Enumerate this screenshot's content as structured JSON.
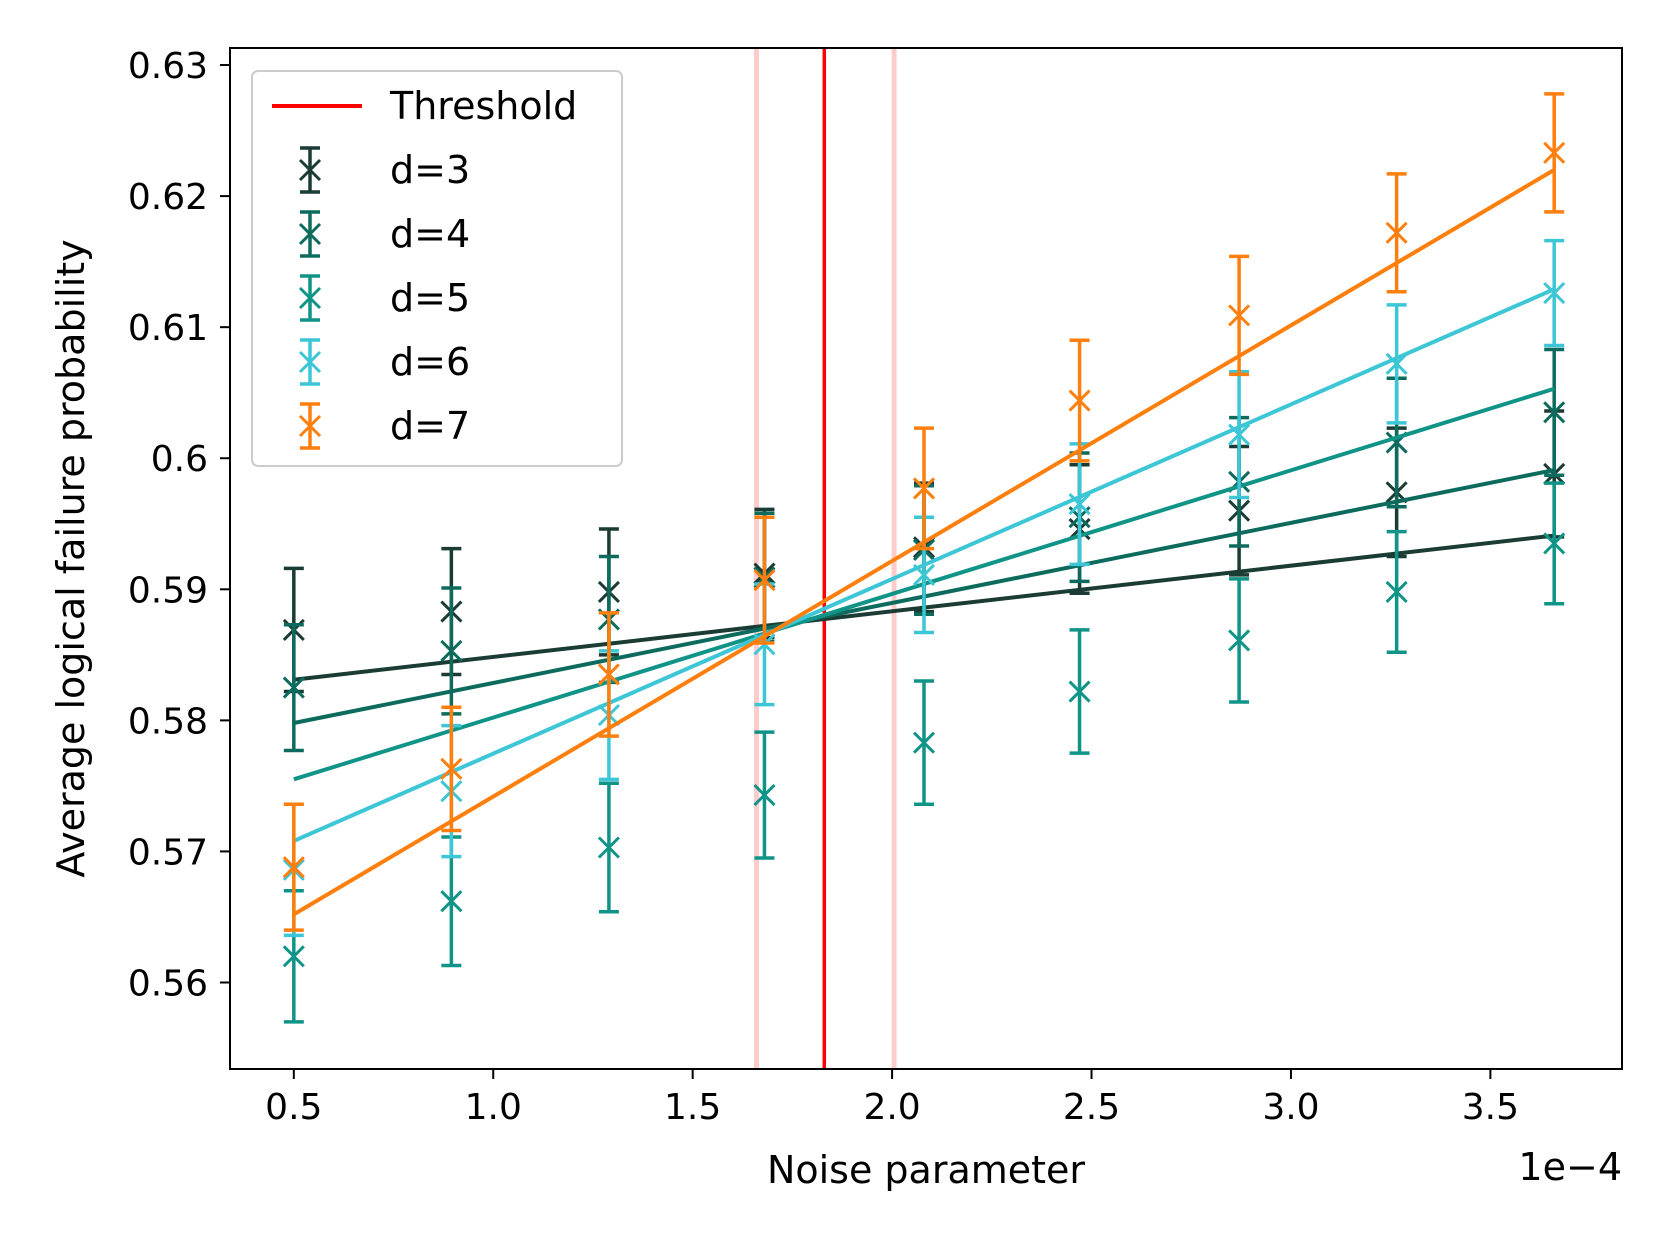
{
  "chart_data": {
    "type": "line",
    "xlabel": "Noise parameter",
    "ylabel": "Average logical failure probability",
    "x_multiplier_label": "1e−4",
    "xlim": [
      0.34,
      3.83
    ],
    "ylim": [
      0.5534,
      0.6313
    ],
    "xticks": [
      0.5,
      1.0,
      1.5,
      2.0,
      2.5,
      3.0,
      3.5
    ],
    "xtick_labels": [
      "0.5",
      "1.0",
      "1.5",
      "2.0",
      "2.5",
      "3.0",
      "3.5"
    ],
    "yticks": [
      0.56,
      0.57,
      0.58,
      0.59,
      0.6,
      0.61,
      0.62,
      0.63
    ],
    "ytick_labels": [
      "0.56",
      "0.57",
      "0.58",
      "0.59",
      "0.6",
      "0.61",
      "0.62",
      "0.63"
    ],
    "legend_position": "top-left",
    "threshold": {
      "name": "Threshold",
      "x": 1.83,
      "lower": 1.66,
      "upper": 2.005,
      "color": "#ff0000",
      "band_color": "#ffcccc"
    },
    "x": [
      0.5,
      0.895,
      1.29,
      1.68,
      2.08,
      2.47,
      2.87,
      3.265,
      3.66
    ],
    "series": [
      {
        "name": "d=3",
        "color": "#1a3c34",
        "values": [
          0.5869,
          0.5883,
          0.5898,
          0.5912,
          0.5932,
          0.5946,
          0.596,
          0.5974,
          0.5988
        ],
        "errors": [
          0.0047,
          0.0048,
          0.0048,
          0.0049,
          0.0049,
          0.0049,
          0.0049,
          0.0049,
          0.0048
        ],
        "fit": [
          0.5831,
          0.5941
        ]
      },
      {
        "name": "d=4",
        "color": "#0d6b5e",
        "values": [
          0.5825,
          0.5853,
          0.5877,
          0.5909,
          0.593,
          0.5955,
          0.5982,
          0.6012,
          0.6035
        ],
        "errors": [
          0.0048,
          0.0048,
          0.0048,
          0.0049,
          0.0049,
          0.0049,
          0.0049,
          0.0049,
          0.0048
        ],
        "fit": [
          0.5798,
          0.5991
        ]
      },
      {
        "name": "d=5",
        "color": "#119488",
        "values": [
          0.562,
          0.5662,
          0.5703,
          0.5743,
          0.5783,
          0.5822,
          0.5861,
          0.5898,
          0.5935
        ],
        "errors": [
          0.005,
          0.0049,
          0.0049,
          0.0048,
          0.0047,
          0.0047,
          0.0047,
          0.0046,
          0.0046
        ],
        "fit": [
          0.5755,
          0.6053
        ]
      },
      {
        "name": "d=6",
        "color": "#3cc6d6",
        "values": [
          0.5686,
          0.5746,
          0.5804,
          0.5858,
          0.5911,
          0.5965,
          0.6018,
          0.6072,
          0.6126
        ],
        "errors": [
          0.005,
          0.005,
          0.0049,
          0.0046,
          0.0044,
          0.0046,
          0.0048,
          0.0045,
          0.004
        ],
        "fit": [
          0.5708,
          0.6129
        ]
      },
      {
        "name": "d=7",
        "color": "#ff7f0e",
        "values": [
          0.5688,
          0.5763,
          0.5835,
          0.5907,
          0.5977,
          0.6044,
          0.6109,
          0.6172,
          0.6233
        ],
        "errors": [
          0.0048,
          0.0047,
          0.0047,
          0.0048,
          0.0046,
          0.0046,
          0.0045,
          0.0045,
          0.0045
        ],
        "fit": [
          0.5652,
          0.622
        ]
      }
    ]
  }
}
